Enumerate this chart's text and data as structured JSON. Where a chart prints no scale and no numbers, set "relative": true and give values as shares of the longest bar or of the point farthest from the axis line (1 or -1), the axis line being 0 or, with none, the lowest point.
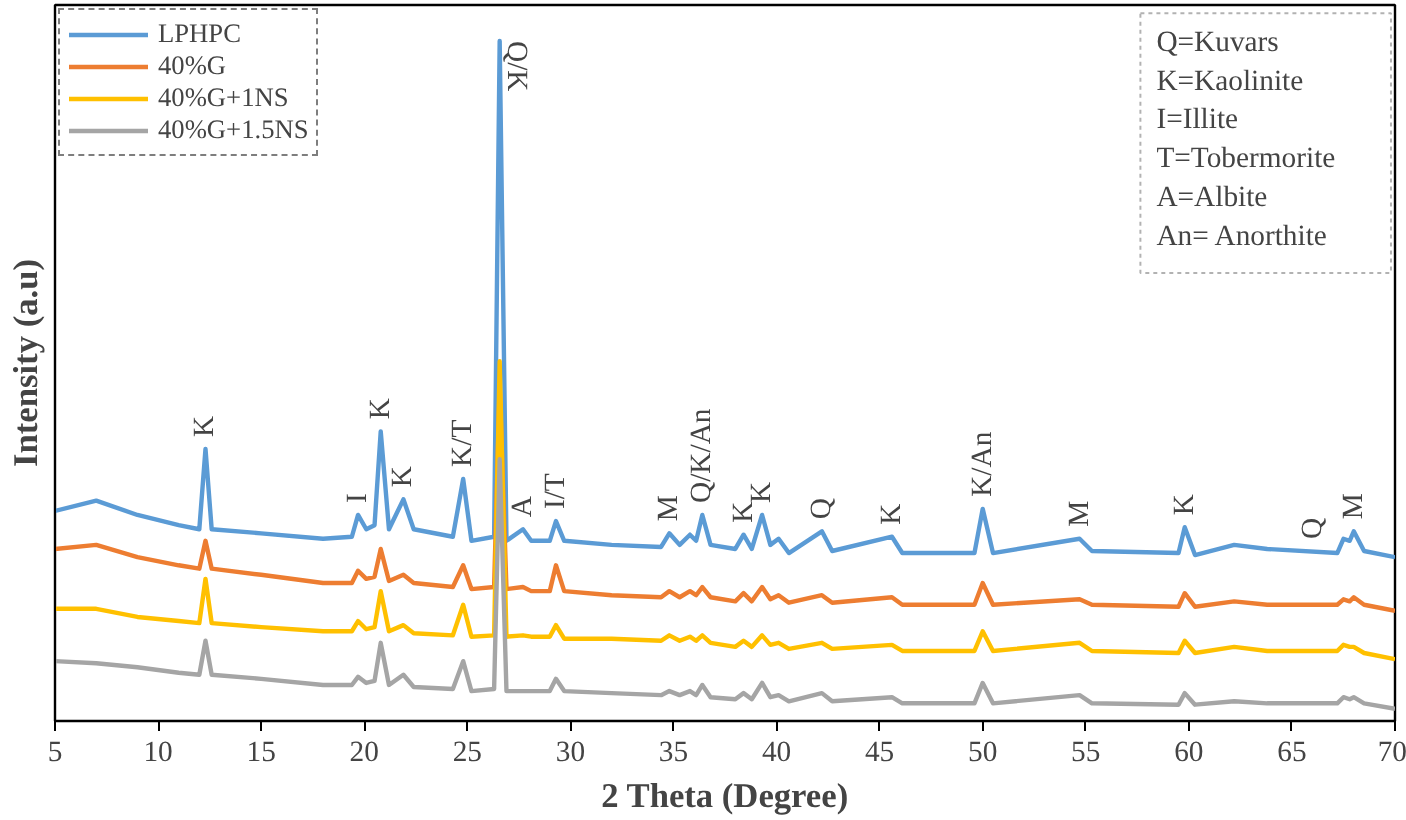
{
  "chart_data": {
    "type": "line",
    "relative": true,
    "xlabel": "2 Theta (Degree)",
    "ylabel": "Intensity (a.u)",
    "xlim": [
      5,
      70
    ],
    "xticks": [
      5,
      10,
      15,
      20,
      25,
      30,
      35,
      40,
      45,
      50,
      55,
      60,
      65,
      70
    ],
    "tick_labels": "x",
    "grid": false,
    "legend": "top left",
    "marker": "none",
    "line_style": "solid",
    "x": [
      5,
      7,
      9,
      11,
      12.0,
      12.3,
      12.6,
      15,
      18,
      19.4,
      19.7,
      20.1,
      20.5,
      20.8,
      21.2,
      21.9,
      22.4,
      24.3,
      24.8,
      25.2,
      26.3,
      26.57,
      26.9,
      27.7,
      28.1,
      29.0,
      29.3,
      29.7,
      32,
      34.4,
      34.8,
      35.3,
      35.8,
      36.1,
      36.4,
      36.8,
      38.0,
      38.4,
      38.8,
      39.3,
      39.7,
      40.1,
      40.6,
      42.2,
      42.7,
      45.6,
      46.1,
      49.6,
      50.0,
      50.5,
      54.7,
      55.3,
      59.5,
      59.8,
      60.3,
      62.2,
      63.8,
      67.2,
      67.5,
      67.8,
      68.0,
      68.5,
      70
    ],
    "series": [
      {
        "name": "LPHPC",
        "color": "#5b9bd5",
        "values": [
          0.309,
          0.324,
          0.303,
          0.288,
          0.282,
          0.4,
          0.282,
          0.276,
          0.268,
          0.271,
          0.303,
          0.282,
          0.288,
          0.426,
          0.282,
          0.326,
          0.282,
          0.271,
          0.356,
          0.265,
          0.271,
          1.0,
          0.265,
          0.282,
          0.265,
          0.265,
          0.294,
          0.265,
          0.259,
          0.256,
          0.276,
          0.259,
          0.274,
          0.265,
          0.303,
          0.259,
          0.253,
          0.274,
          0.253,
          0.303,
          0.259,
          0.268,
          0.247,
          0.279,
          0.25,
          0.271,
          0.247,
          0.247,
          0.312,
          0.247,
          0.268,
          0.25,
          0.247,
          0.285,
          0.244,
          0.259,
          0.253,
          0.247,
          0.268,
          0.265,
          0.279,
          0.25,
          0.241
        ]
      },
      {
        "name": "40%G",
        "color": "#ed7d31",
        "values": [
          0.253,
          0.259,
          0.241,
          0.229,
          0.224,
          0.265,
          0.224,
          0.215,
          0.203,
          0.203,
          0.221,
          0.209,
          0.212,
          0.253,
          0.206,
          0.215,
          0.203,
          0.197,
          0.229,
          0.194,
          0.197,
          0.494,
          0.194,
          0.197,
          0.191,
          0.191,
          0.229,
          0.191,
          0.185,
          0.182,
          0.191,
          0.182,
          0.191,
          0.185,
          0.197,
          0.182,
          0.176,
          0.188,
          0.176,
          0.197,
          0.179,
          0.185,
          0.174,
          0.185,
          0.174,
          0.182,
          0.171,
          0.171,
          0.203,
          0.171,
          0.179,
          0.171,
          0.168,
          0.188,
          0.168,
          0.176,
          0.171,
          0.171,
          0.179,
          0.176,
          0.182,
          0.171,
          0.162
        ]
      },
      {
        "name": "40%G+1NS",
        "color": "#ffc000",
        "values": [
          0.165,
          0.165,
          0.153,
          0.147,
          0.144,
          0.209,
          0.144,
          0.138,
          0.132,
          0.132,
          0.147,
          0.135,
          0.138,
          0.191,
          0.132,
          0.141,
          0.129,
          0.126,
          0.171,
          0.124,
          0.126,
          0.529,
          0.124,
          0.126,
          0.124,
          0.124,
          0.141,
          0.121,
          0.121,
          0.118,
          0.126,
          0.118,
          0.124,
          0.118,
          0.126,
          0.115,
          0.109,
          0.118,
          0.109,
          0.126,
          0.112,
          0.115,
          0.106,
          0.115,
          0.106,
          0.112,
          0.103,
          0.103,
          0.132,
          0.103,
          0.115,
          0.103,
          0.1,
          0.118,
          0.1,
          0.109,
          0.103,
          0.103,
          0.112,
          0.109,
          0.109,
          0.1,
          0.091
        ]
      },
      {
        "name": "40%G+1.5NS",
        "color": "#a5a5a5",
        "values": [
          0.088,
          0.085,
          0.079,
          0.071,
          0.068,
          0.118,
          0.068,
          0.062,
          0.053,
          0.053,
          0.065,
          0.056,
          0.059,
          0.115,
          0.053,
          0.068,
          0.05,
          0.047,
          0.088,
          0.044,
          0.047,
          0.385,
          0.044,
          0.044,
          0.044,
          0.044,
          0.062,
          0.044,
          0.041,
          0.038,
          0.044,
          0.038,
          0.044,
          0.038,
          0.053,
          0.035,
          0.032,
          0.041,
          0.032,
          0.056,
          0.035,
          0.038,
          0.029,
          0.041,
          0.029,
          0.035,
          0.026,
          0.026,
          0.056,
          0.026,
          0.038,
          0.026,
          0.024,
          0.041,
          0.024,
          0.029,
          0.026,
          0.026,
          0.035,
          0.032,
          0.035,
          0.026,
          0.018
        ]
      }
    ],
    "annotations": [
      {
        "text": "K",
        "x": 12.3,
        "y": 0.4
      },
      {
        "text": "I",
        "x": 19.7,
        "y": 0.303
      },
      {
        "text": "K",
        "x": 20.8,
        "y": 0.426
      },
      {
        "text": "K",
        "x": 21.9,
        "y": 0.326
      },
      {
        "text": "K/T",
        "x": 24.8,
        "y": 0.356
      },
      {
        "text": "Q/K",
        "x": 26.57,
        "y": 1.0
      },
      {
        "text": "A",
        "x": 27.7,
        "y": 0.282
      },
      {
        "text": "I/T",
        "x": 29.3,
        "y": 0.294
      },
      {
        "text": "M",
        "x": 34.8,
        "y": 0.276
      },
      {
        "text": "Q/K/An",
        "x": 36.4,
        "y": 0.303
      },
      {
        "text": "K",
        "x": 38.4,
        "y": 0.274
      },
      {
        "text": "K",
        "x": 39.3,
        "y": 0.303
      },
      {
        "text": "Q",
        "x": 42.2,
        "y": 0.279
      },
      {
        "text": "K",
        "x": 45.6,
        "y": 0.271
      },
      {
        "text": "K/An",
        "x": 50.0,
        "y": 0.312
      },
      {
        "text": "M",
        "x": 54.7,
        "y": 0.268
      },
      {
        "text": "K",
        "x": 59.8,
        "y": 0.285
      },
      {
        "text": "Q",
        "x": 66.0,
        "y": 0.25
      },
      {
        "text": "M",
        "x": 68.0,
        "y": 0.279
      },
      "Q=Kuvars",
      "K=Kaolinite",
      "I=Illite",
      "T=Tobermorite",
      "A=Albite",
      "An= Anorthite"
    ]
  }
}
